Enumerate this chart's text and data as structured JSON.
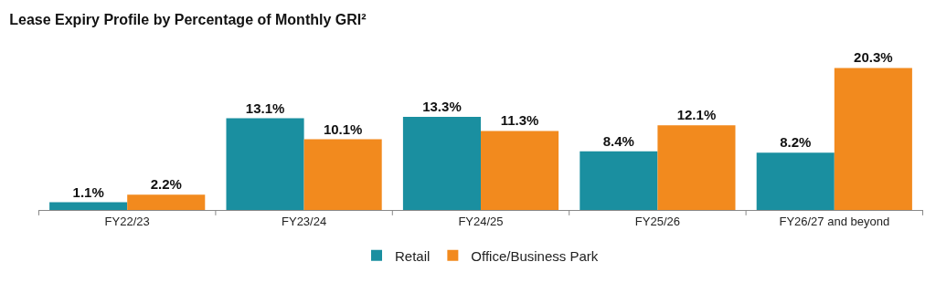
{
  "chart_data": {
    "type": "bar",
    "title": "Lease Expiry Profile by Percentage of Monthly GRI²",
    "categories": [
      "FY22/23",
      "FY23/24",
      "FY24/25",
      "FY25/26",
      "FY26/27 and beyond"
    ],
    "series": [
      {
        "name": "Retail",
        "color": "#1a8fa0",
        "values": [
          1.1,
          13.1,
          13.3,
          8.4,
          8.2
        ],
        "value_labels": [
          "1.1%",
          "13.1%",
          "13.3%",
          "8.4%",
          "8.2%"
        ]
      },
      {
        "name": "Office/Business Park",
        "color": "#f28a1e",
        "values": [
          2.2,
          10.1,
          11.3,
          12.1,
          20.3
        ],
        "value_labels": [
          "2.2%",
          "10.1%",
          "11.3%",
          "12.1%",
          "20.3%"
        ]
      }
    ],
    "legend": "bottom"
  }
}
